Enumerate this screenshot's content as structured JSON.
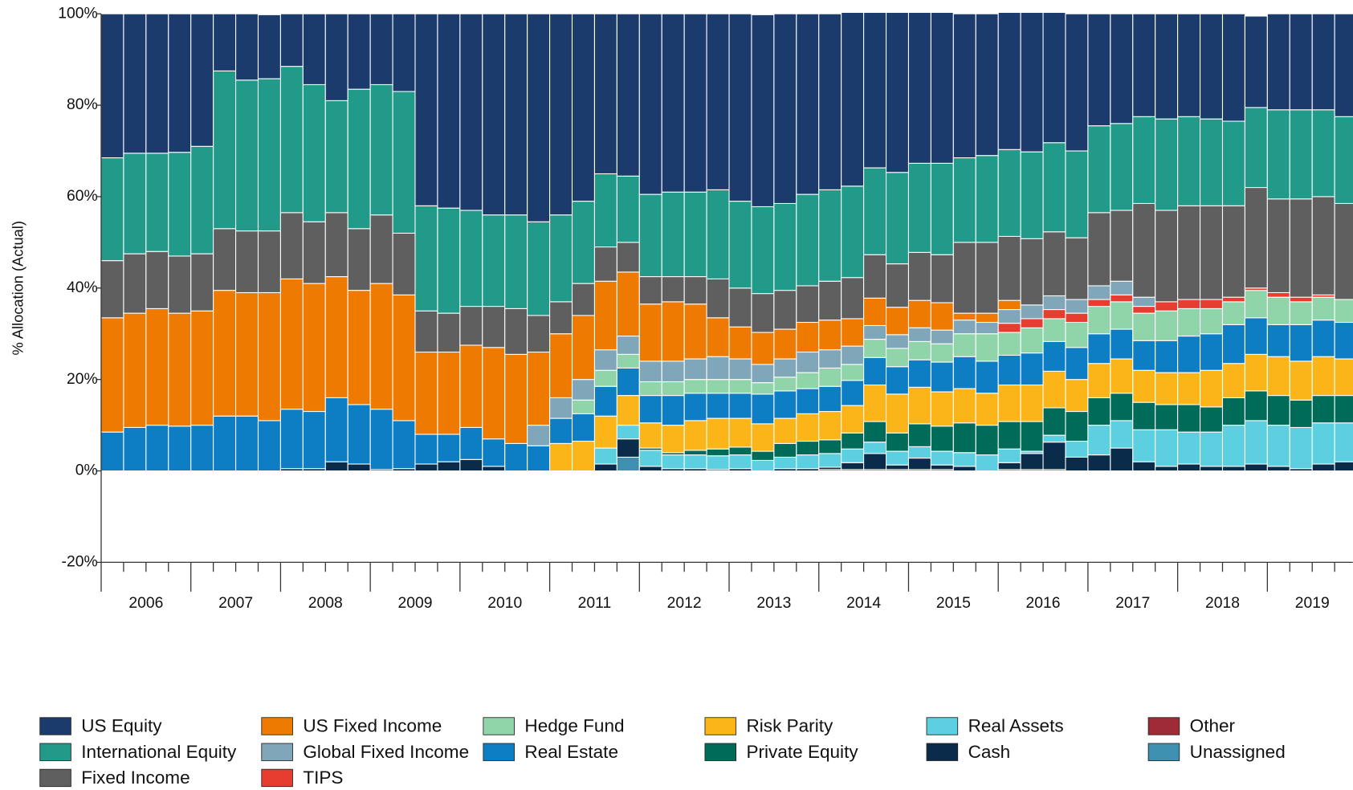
{
  "chart_data": {
    "type": "stacked_bar",
    "y_label": "% Allocation (Actual)",
    "year_labels": [
      "2006",
      "2007",
      "2008",
      "2009",
      "2010",
      "2011",
      "2012",
      "2013",
      "2014",
      "2015",
      "2016",
      "2017",
      "2018",
      "2019"
    ],
    "ylim": [
      -20,
      100
    ],
    "yticks": [
      {
        "value": -20,
        "label": "-20%"
      },
      {
        "value": 0,
        "label": "0%"
      },
      {
        "value": 20,
        "label": "20%"
      },
      {
        "value": 40,
        "label": "40%"
      },
      {
        "value": 60,
        "label": "60%"
      },
      {
        "value": 80,
        "label": "80%"
      },
      {
        "value": 100,
        "label": "100%"
      }
    ],
    "grid": false,
    "series": [
      {
        "name": "US Equity",
        "color": "#1b3b6c",
        "values": [
          31.5,
          30.5,
          30.5,
          30.3,
          29,
          12.5,
          14.5,
          14,
          11.5,
          15.5,
          19,
          16.5,
          15.5,
          17,
          42,
          42.5,
          43,
          44,
          44,
          45.5,
          44,
          41,
          35,
          35.5,
          39.5,
          39,
          39,
          38.5,
          41,
          42,
          41.5,
          39.5,
          38.5,
          38,
          34,
          35,
          33,
          33,
          31.5,
          31,
          30,
          30.5,
          28.5,
          30,
          24.5,
          24,
          22.5,
          23,
          22.5,
          23,
          23.5,
          20,
          21,
          21,
          21,
          22.5
        ]
      },
      {
        "name": "International Equity",
        "color": "#219a89",
        "values": [
          22.5,
          22,
          21.5,
          22.7,
          23.5,
          34.5,
          33,
          33.3,
          32,
          30,
          24.5,
          30.5,
          28.5,
          31,
          23,
          23,
          21,
          20,
          20.5,
          20.5,
          19,
          18,
          16,
          14.5,
          18,
          18.5,
          18.5,
          19.5,
          19,
          19,
          19,
          20,
          20,
          20,
          19,
          20,
          19.5,
          20,
          18.5,
          19,
          19,
          19,
          19.5,
          19,
          19,
          19,
          19,
          20,
          19.5,
          19,
          18.5,
          17.5,
          19.5,
          19.5,
          19,
          19
        ]
      },
      {
        "name": "Fixed Income",
        "color": "#5f5f5f",
        "values": [
          12.5,
          13,
          12.5,
          12.5,
          12.5,
          13.5,
          13.5,
          13.5,
          14.5,
          13.5,
          14,
          13.5,
          15,
          13.5,
          9,
          8.5,
          8.5,
          9,
          10,
          8,
          7,
          7,
          7.5,
          6.5,
          6,
          5.5,
          6,
          8.5,
          8.5,
          8.5,
          8.5,
          8,
          8.5,
          9,
          9.5,
          9.5,
          10.5,
          10.5,
          15.5,
          15.5,
          14,
          14.5,
          14,
          13.5,
          16,
          15.5,
          20.5,
          20,
          20.5,
          20.5,
          20,
          22,
          20.5,
          21.5,
          21.5,
          21
        ]
      },
      {
        "name": "US Fixed Income",
        "color": "#ee7a02",
        "values": [
          25,
          25,
          25.5,
          24.7,
          25,
          27.5,
          27,
          28,
          28.5,
          28,
          26.5,
          25,
          27.5,
          27.5,
          18,
          18,
          18,
          20,
          19.5,
          16,
          14,
          14,
          15,
          14,
          12.5,
          13,
          12,
          8.5,
          7,
          7,
          6.5,
          6.5,
          6.5,
          6,
          6,
          6,
          6,
          6,
          1.5,
          2,
          2,
          0,
          0,
          0,
          0,
          0,
          0,
          0,
          0,
          0,
          0,
          0,
          0,
          0,
          0,
          0
        ]
      },
      {
        "name": "Global Fixed Income",
        "color": "#80a7b9",
        "values": [
          0,
          0,
          0,
          0,
          0,
          0,
          0,
          0,
          0,
          0,
          0,
          0,
          0,
          0,
          0,
          0,
          0,
          0,
          0,
          4.5,
          4.5,
          4.5,
          4.5,
          4,
          4.5,
          4.5,
          4.5,
          5,
          4.5,
          4,
          4,
          4.5,
          4,
          4,
          3,
          3,
          3,
          3,
          3,
          2.5,
          3,
          3,
          3,
          3,
          3,
          3,
          2,
          0,
          0,
          0,
          0,
          0,
          0,
          0,
          0,
          0
        ]
      },
      {
        "name": "TIPS",
        "color": "#e63d30",
        "values": [
          0,
          0,
          0,
          0,
          0,
          0,
          0,
          0,
          0,
          0,
          0,
          0,
          0,
          0,
          0,
          0,
          0,
          0,
          0,
          0,
          0,
          0,
          0,
          0,
          0,
          0,
          0,
          0,
          0,
          0,
          0,
          0,
          0,
          0,
          0,
          0,
          0,
          0,
          0,
          0,
          2,
          2,
          2,
          2,
          1.5,
          1.5,
          1.5,
          2,
          2,
          2,
          1,
          0.5,
          1,
          1,
          0.5,
          0
        ]
      },
      {
        "name": "Hedge Fund",
        "color": "#90d5a9",
        "values": [
          0,
          0,
          0,
          0,
          0,
          0,
          0,
          0,
          0,
          0,
          0,
          0,
          0,
          0,
          0,
          0,
          0,
          0,
          0,
          0,
          0,
          3,
          3.5,
          3,
          3,
          3,
          3,
          3,
          3,
          2.5,
          3,
          3.5,
          4,
          3.5,
          4,
          4,
          4,
          4,
          5,
          6,
          5,
          5.5,
          5,
          5.5,
          6,
          6,
          6,
          6.5,
          6,
          5.5,
          5,
          6,
          6,
          5,
          5,
          5
        ]
      },
      {
        "name": "Real Estate",
        "color": "#0e7ec4",
        "values": [
          8.5,
          9.5,
          10,
          9.8,
          10,
          12,
          12,
          11,
          13,
          12.5,
          14,
          13,
          13.2,
          10.5,
          6.5,
          6,
          7,
          6,
          6,
          5.5,
          5.5,
          6,
          6.5,
          6,
          6,
          6.5,
          6,
          5.5,
          5.5,
          6.5,
          6,
          5.5,
          5.5,
          5.5,
          6,
          6,
          6,
          6.5,
          7,
          7,
          6.5,
          7,
          6.5,
          7,
          6.5,
          6.5,
          6.5,
          7,
          8,
          8,
          8.5,
          8,
          7,
          8,
          8,
          8
        ]
      },
      {
        "name": "Risk Parity",
        "color": "#fbb519",
        "values": [
          0,
          0,
          0,
          0,
          0,
          0,
          0,
          0,
          0,
          0,
          0,
          0,
          0,
          0,
          0,
          0,
          0,
          0,
          0,
          0,
          6,
          6.5,
          7,
          6.5,
          5.5,
          6,
          6.5,
          6.7,
          6.3,
          6,
          5.5,
          6,
          6.2,
          6,
          8,
          8.5,
          8,
          7.5,
          7.5,
          7,
          8,
          8,
          8,
          7,
          7.5,
          7.5,
          7,
          7,
          7,
          8,
          7.5,
          8,
          8.5,
          8.5,
          8.5,
          8
        ]
      },
      {
        "name": "Private Equity",
        "color": "#006b59",
        "values": [
          0,
          0,
          0,
          0,
          0,
          0,
          0,
          0,
          0,
          0,
          0,
          0,
          0,
          0,
          0,
          0,
          0,
          0,
          0,
          0,
          0,
          0,
          0,
          0,
          0.5,
          0.5,
          1,
          1.5,
          1.7,
          2,
          3,
          3,
          3,
          3.5,
          4.5,
          4,
          5,
          5.5,
          6.5,
          6.5,
          6,
          6.5,
          6,
          6.5,
          6,
          6,
          6,
          5.5,
          6,
          5.5,
          6,
          6.5,
          6.5,
          6,
          6,
          6
        ]
      },
      {
        "name": "Real Assets",
        "color": "#5ccfe0",
        "values": [
          0,
          0,
          0,
          0,
          0,
          0,
          0,
          0,
          0,
          0,
          0,
          0,
          0,
          0,
          0,
          0,
          0,
          0,
          0,
          0,
          0,
          0,
          3.5,
          3,
          3.5,
          3,
          3,
          3,
          3,
          2.3,
          2.5,
          3,
          3,
          3,
          2.5,
          3,
          2.5,
          3,
          3,
          3.5,
          3,
          0.5,
          1.5,
          3.5,
          6.5,
          6,
          7,
          8,
          7,
          7.5,
          9,
          9.5,
          9,
          9,
          9,
          8.5
        ]
      },
      {
        "name": "Cash",
        "color": "#0b2b4b",
        "values": [
          0,
          0,
          0,
          0,
          0,
          0,
          0,
          0,
          0.5,
          0.5,
          2,
          1.5,
          0.3,
          0.5,
          1.5,
          2,
          2.5,
          1,
          0,
          0,
          0,
          0,
          1.5,
          4,
          1,
          0.5,
          0.5,
          0.3,
          0.5,
          0,
          0.5,
          0.5,
          0.5,
          1.5,
          3.5,
          1,
          2.5,
          1,
          1,
          0,
          1.5,
          3.5,
          6,
          3,
          3.5,
          5,
          2,
          1,
          1.5,
          1,
          1,
          1.5,
          1,
          0.5,
          1.5,
          2
        ]
      },
      {
        "name": "Other",
        "color": "#9e2b35",
        "values": [
          0,
          0,
          0,
          0,
          0,
          0,
          0,
          0,
          0,
          0,
          0,
          0,
          0,
          0,
          0,
          0,
          0,
          0,
          0,
          0,
          0,
          0,
          0,
          0,
          0,
          0,
          0,
          0,
          0,
          0,
          0,
          0,
          0.3,
          0.3,
          0.3,
          0.3,
          0.3,
          0.3,
          0,
          0,
          0.3,
          0.3,
          0.3,
          0,
          0,
          0,
          0,
          0,
          0,
          0,
          0,
          0,
          0,
          0,
          0,
          0
        ]
      },
      {
        "name": "Unassigned",
        "color": "#3e90b1",
        "values": [
          0,
          0,
          0,
          0,
          0,
          0,
          0,
          0,
          0,
          0,
          0,
          0,
          0,
          0,
          0,
          0,
          0,
          0,
          0,
          0,
          0,
          0,
          0,
          3,
          0,
          0,
          0,
          0,
          0,
          0,
          0,
          0,
          0,
          0,
          0,
          0,
          0,
          0,
          0,
          0,
          0,
          0,
          0,
          0,
          0,
          0,
          0,
          0,
          0,
          0,
          0,
          0,
          0,
          0,
          0,
          0
        ]
      }
    ]
  }
}
